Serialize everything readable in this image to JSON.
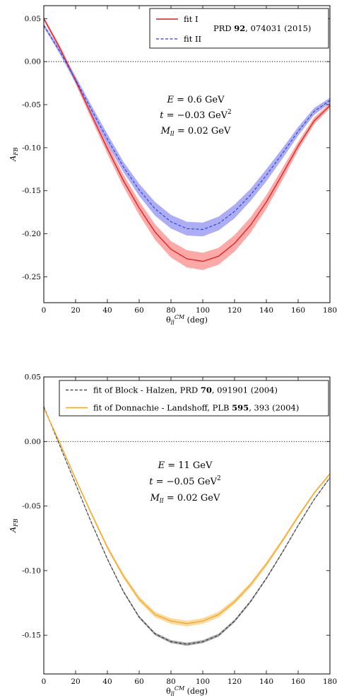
{
  "chart_data": [
    {
      "type": "line",
      "xlabel": "θ_ll^CM (deg)",
      "ylabel": "A_FB",
      "xlim": [
        0,
        180
      ],
      "ylim": [
        -0.28,
        0.065
      ],
      "xticks": [
        "0",
        "20",
        "40",
        "60",
        "80",
        "100",
        "120",
        "140",
        "160",
        "180"
      ],
      "yticks": [
        "0.05",
        "0.00",
        "-0.05",
        "-0.10",
        "-0.15",
        "-0.20",
        "-0.25"
      ],
      "zero_line": true,
      "annotations": [
        "E = 0.6 GeV",
        "t = −0.03 GeV²",
        "M_ll = 0.02 GeV"
      ],
      "legend": {
        "placement": "top-right",
        "entries": [
          "fit I",
          "fit II"
        ],
        "reference": {
          "pre": "PRD ",
          "bold": "92",
          "post": ", 074031 (2015)"
        }
      },
      "x": [
        0,
        10,
        20,
        30,
        40,
        50,
        60,
        70,
        80,
        90,
        100,
        110,
        120,
        130,
        140,
        150,
        160,
        170,
        180
      ],
      "series": [
        {
          "name": "fit I",
          "color": "#e31a1c",
          "band_color": "#fb9a99",
          "style": "solid",
          "values": [
            0.05,
            0.016,
            -0.022,
            -0.062,
            -0.101,
            -0.138,
            -0.17,
            -0.198,
            -0.218,
            -0.229,
            -0.232,
            -0.226,
            -0.211,
            -0.19,
            -0.163,
            -0.131,
            -0.098,
            -0.069,
            -0.051
          ],
          "band": [
            0.002,
            0.003,
            0.004,
            0.005,
            0.006,
            0.007,
            0.008,
            0.009,
            0.0095,
            0.01,
            0.01,
            0.0098,
            0.0095,
            0.009,
            0.008,
            0.007,
            0.005,
            0.004,
            0.003
          ]
        },
        {
          "name": "fit II",
          "color": "#1f3fd8",
          "band_color": "#9f9ff5",
          "style": "dashed",
          "values": [
            0.042,
            0.012,
            -0.021,
            -0.056,
            -0.09,
            -0.122,
            -0.149,
            -0.171,
            -0.186,
            -0.194,
            -0.195,
            -0.188,
            -0.174,
            -0.155,
            -0.132,
            -0.107,
            -0.081,
            -0.058,
            -0.045
          ],
          "band": [
            0.002,
            0.003,
            0.004,
            0.005,
            0.006,
            0.006,
            0.007,
            0.008,
            0.008,
            0.008,
            0.008,
            0.008,
            0.008,
            0.007,
            0.007,
            0.006,
            0.005,
            0.004,
            0.003
          ]
        }
      ]
    },
    {
      "type": "line",
      "xlabel": "θ_ll^CM (deg)",
      "ylabel": "A_FB",
      "xlim": [
        0,
        180
      ],
      "ylim": [
        -0.18,
        0.05
      ],
      "xticks": [
        "0",
        "20",
        "40",
        "60",
        "80",
        "100",
        "120",
        "140",
        "160",
        "180"
      ],
      "yticks": [
        "0.05",
        "0.00",
        "-0.05",
        "-0.10",
        "-0.15"
      ],
      "zero_line": true,
      "annotations": [
        "E = 11 GeV",
        "t = −0.05 GeV²",
        "M_ll = 0.02 GeV"
      ],
      "legend": {
        "placement": "top-right",
        "entries": [
          {
            "pre": "fit of  Block - Halzen,  PRD ",
            "bold": "70",
            "post": ", 091901 (2004)"
          },
          {
            "pre": "fit of  Donnachie - Landshoff,  PLB ",
            "bold": "595",
            "post": ", 393 (2004)"
          }
        ]
      },
      "x": [
        0,
        10,
        20,
        30,
        40,
        50,
        60,
        70,
        80,
        90,
        100,
        110,
        120,
        130,
        140,
        150,
        160,
        170,
        180
      ],
      "series": [
        {
          "name": "fit of Block - Halzen, PRD 70, 091901 (2004)",
          "color": "#333333",
          "band_color": "#9a9a9a",
          "style": "dashed",
          "values": [
            0.027,
            -0.003,
            -0.033,
            -0.063,
            -0.091,
            -0.116,
            -0.136,
            -0.149,
            -0.155,
            -0.157,
            -0.155,
            -0.15,
            -0.139,
            -0.124,
            -0.106,
            -0.086,
            -0.065,
            -0.045,
            -0.028
          ],
          "band": [
            0.0005,
            0.0005,
            0.0006,
            0.0007,
            0.0008,
            0.0009,
            0.001,
            0.0011,
            0.0012,
            0.0012,
            0.0012,
            0.0012,
            0.0011,
            0.001,
            0.0009,
            0.0008,
            0.0007,
            0.0006,
            0.0005
          ]
        },
        {
          "name": "fit of Donnachie - Landshoff, PLB 595, 393 (2004)",
          "color": "#f5a623",
          "band_color": "#fad48f",
          "style": "solid",
          "values": [
            0.026,
            -0.001,
            -0.029,
            -0.056,
            -0.082,
            -0.104,
            -0.122,
            -0.134,
            -0.139,
            -0.141,
            -0.139,
            -0.134,
            -0.124,
            -0.111,
            -0.095,
            -0.077,
            -0.058,
            -0.04,
            -0.025
          ],
          "band": [
            0.0008,
            0.001,
            0.0012,
            0.0014,
            0.0016,
            0.0018,
            0.002,
            0.0021,
            0.0022,
            0.0022,
            0.0022,
            0.0022,
            0.002,
            0.0019,
            0.0017,
            0.0015,
            0.0013,
            0.0011,
            0.0009
          ]
        }
      ]
    }
  ]
}
